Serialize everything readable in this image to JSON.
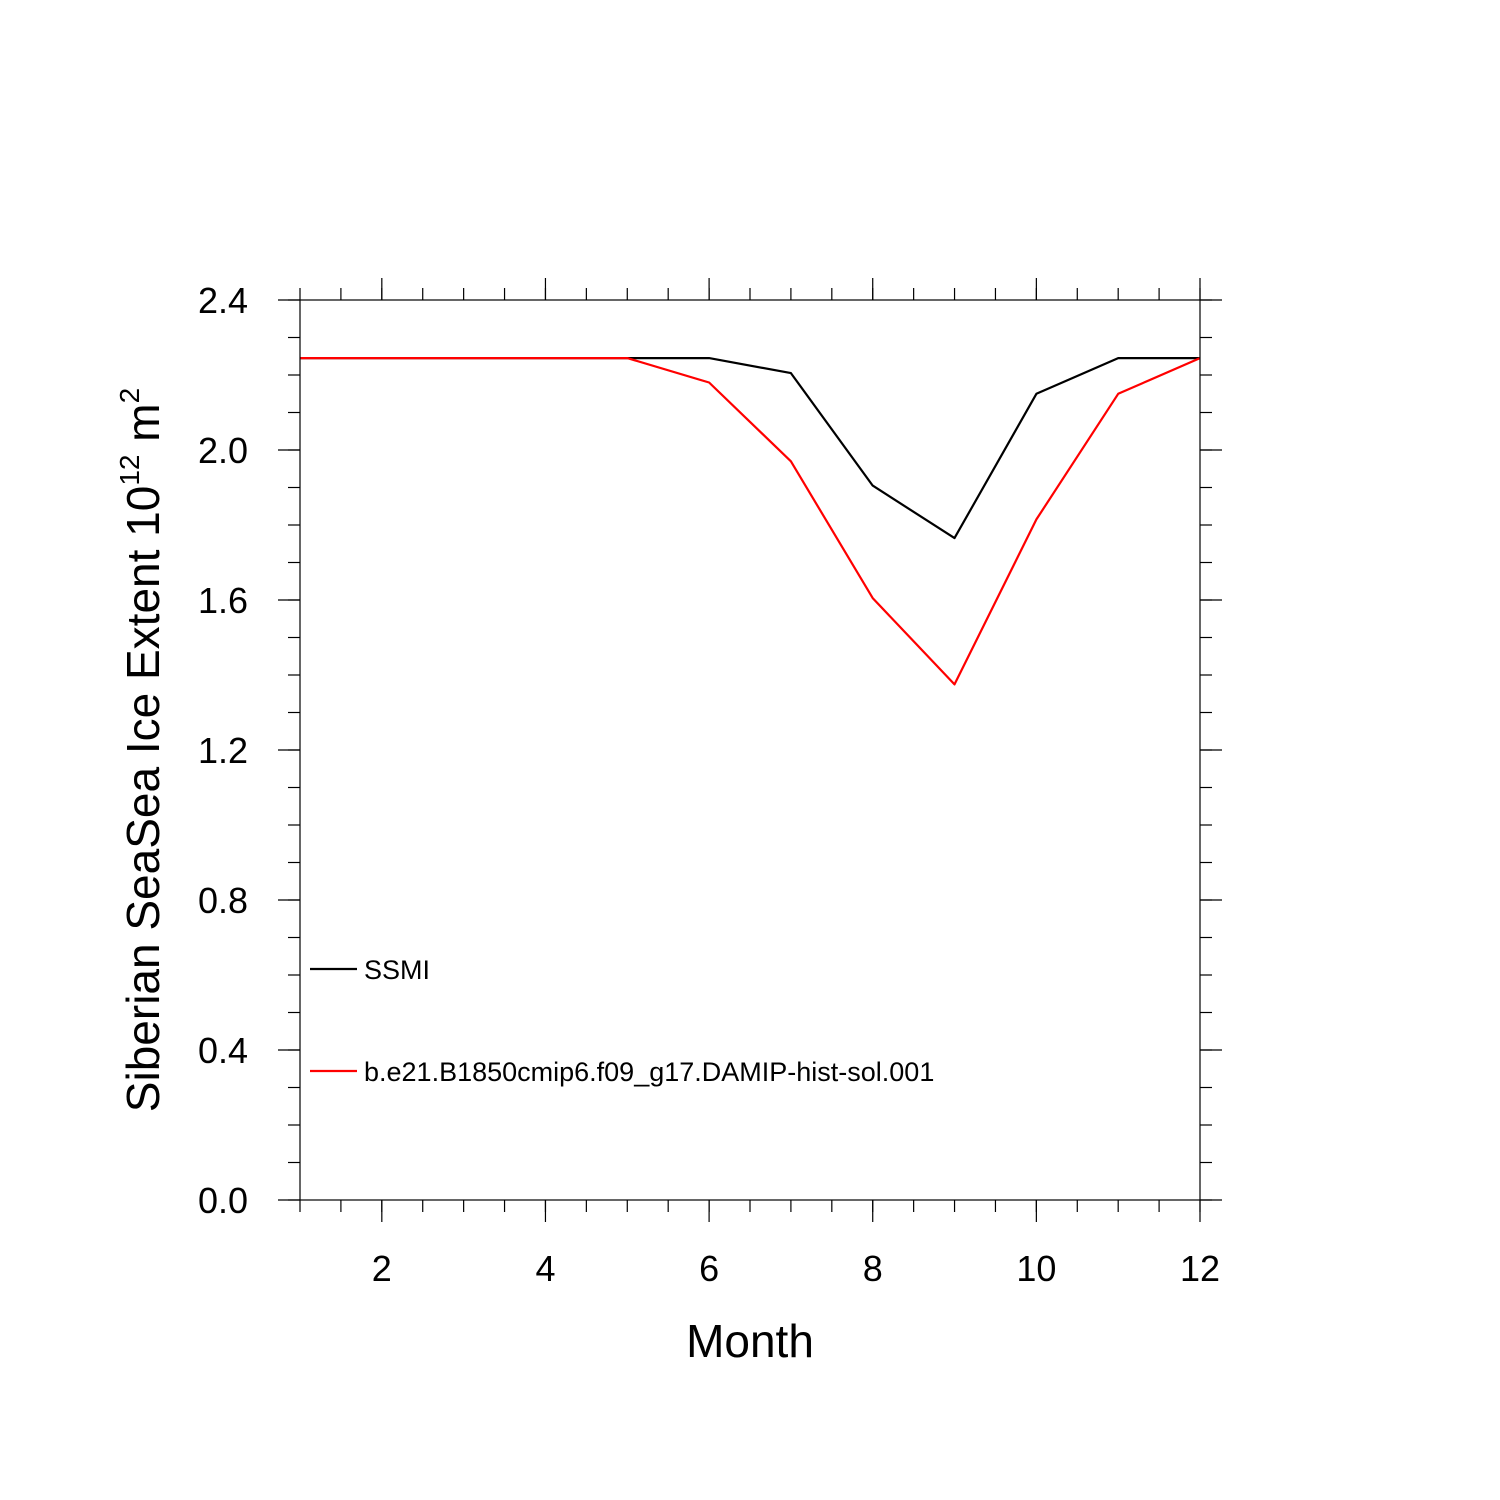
{
  "chart_data": {
    "type": "line",
    "xlabel": "Month",
    "ylabel_main": "Siberian SeaSea Ice Extent 10",
    "ylabel_exp": "12",
    "ylabel_unit": " m",
    "ylabel_unit_exp": "2",
    "xlim": [
      1,
      12
    ],
    "ylim": [
      0,
      2.4
    ],
    "x_ticks": [
      2,
      4,
      6,
      8,
      10,
      12
    ],
    "x_tick_labels": [
      "2",
      "4",
      "6",
      "8",
      "10",
      "12"
    ],
    "y_ticks": [
      0,
      0.4,
      0.8,
      1.2,
      1.6,
      2.0,
      2.4
    ],
    "y_tick_labels": [
      "0.0",
      "0.4",
      "0.8",
      "1.2",
      "1.6",
      "2.0",
      "2.4"
    ],
    "x": [
      1,
      2,
      3,
      4,
      5,
      6,
      7,
      8,
      9,
      10,
      11,
      12
    ],
    "series": [
      {
        "name": "SSMI",
        "color": "#000000",
        "values": [
          2.245,
          2.245,
          2.245,
          2.245,
          2.245,
          2.245,
          2.205,
          1.905,
          1.765,
          2.15,
          2.245,
          2.245
        ]
      },
      {
        "name": "b.e21.B1850cmip6.f09_g17.DAMIP-hist-sol.001",
        "color": "#ff0000",
        "values": [
          2.245,
          2.245,
          2.245,
          2.245,
          2.245,
          2.18,
          1.97,
          1.605,
          1.375,
          1.815,
          2.15,
          2.245
        ]
      }
    ],
    "legend_position": "lower-left",
    "grid": false
  }
}
